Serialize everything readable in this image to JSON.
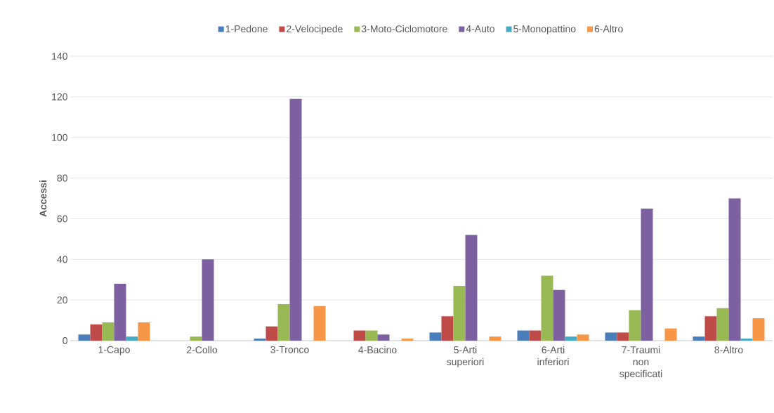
{
  "chart_data": {
    "type": "bar",
    "ylabel": "Accessi",
    "categories": [
      "1-Capo",
      "2-Collo",
      "3-Tronco",
      "4-Bacino",
      "5-Arti superiori",
      "6-Arti inferiori",
      "7-Traumi non specificati",
      "8-Altro"
    ],
    "series": [
      {
        "name": "1-Pedone",
        "color": "#4a7ebb",
        "values": [
          3,
          0,
          1,
          0,
          4,
          5,
          4,
          2
        ]
      },
      {
        "name": "2-Velocipede",
        "color": "#be4b48",
        "values": [
          8,
          0,
          7,
          5,
          12,
          5,
          4,
          12
        ]
      },
      {
        "name": "3-Moto-Ciclomotore",
        "color": "#98b954",
        "values": [
          9,
          2,
          18,
          5,
          27,
          32,
          15,
          16
        ]
      },
      {
        "name": "4-Auto",
        "color": "#7d60a0",
        "values": [
          28,
          40,
          119,
          3,
          52,
          25,
          65,
          70
        ]
      },
      {
        "name": "5-Monopattino",
        "color": "#46aac5",
        "values": [
          2,
          0,
          0,
          0,
          0,
          2,
          0,
          1
        ]
      },
      {
        "name": "6-Altro",
        "color": "#f79646",
        "values": [
          9,
          0,
          17,
          1,
          2,
          3,
          6,
          11
        ]
      }
    ],
    "ylim": [
      0,
      140
    ],
    "yticks": [
      0,
      20,
      40,
      60,
      80,
      100,
      120,
      140
    ],
    "grid": "y",
    "legend": "top"
  }
}
